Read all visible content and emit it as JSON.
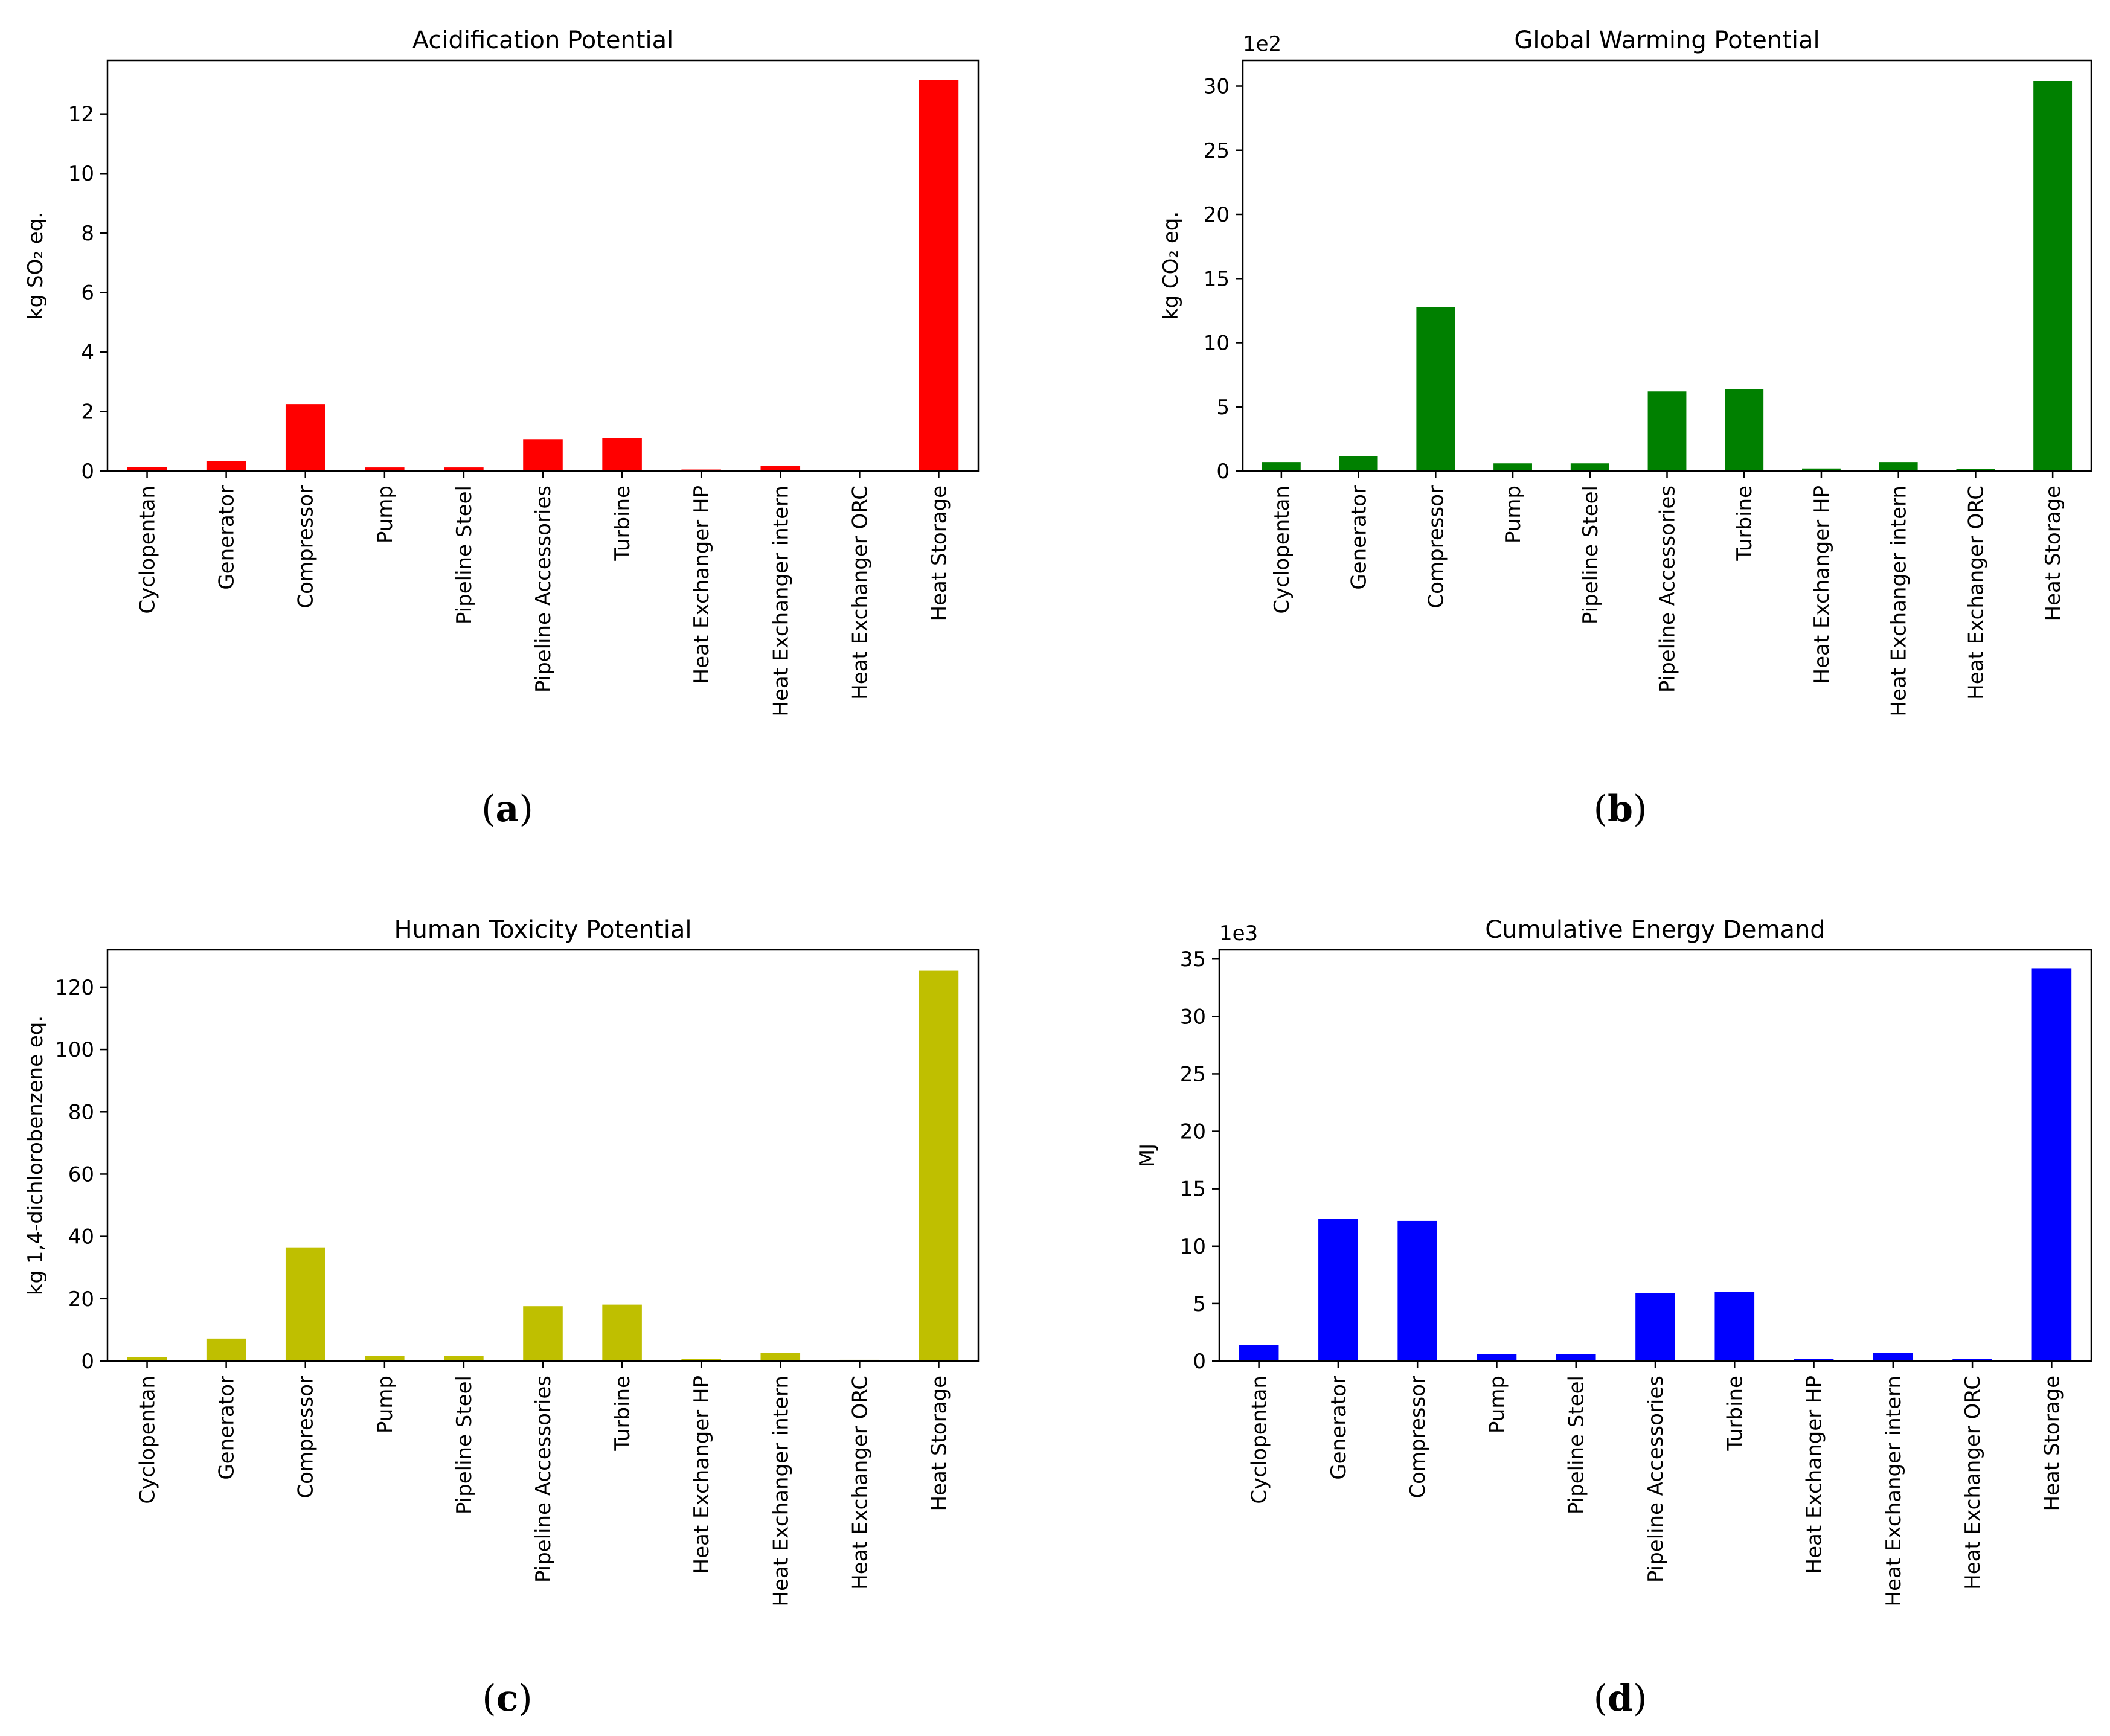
{
  "chart_data": [
    {
      "type": "bar",
      "title": "Acidification Potential",
      "ylabel": "kg SO₂ eq.",
      "xlabel": "",
      "offset_text": "",
      "caption_letter": "a",
      "color": "#ff0000",
      "ylim": [
        0,
        13.8
      ],
      "yticks": [
        0,
        2,
        4,
        6,
        8,
        10,
        12
      ],
      "categories": [
        "Cyclopentan",
        "Generator",
        "Compressor",
        "Pump",
        "Pipeline Steel",
        "Pipeline Accessories",
        "Turbine",
        "Heat Exchanger HP",
        "Heat Exchanger intern",
        "Heat Exchanger ORC",
        "Heat Storage"
      ],
      "values": [
        0.13,
        0.33,
        2.25,
        0.12,
        0.12,
        1.07,
        1.1,
        0.05,
        0.17,
        0.02,
        13.15
      ]
    },
    {
      "type": "bar",
      "title": "Global Warming Potential",
      "ylabel": "kg CO₂ eq.",
      "xlabel": "",
      "offset_text": "1e2",
      "caption_letter": "b",
      "color": "#008000",
      "ylim": [
        0,
        32
      ],
      "yticks": [
        0,
        5,
        10,
        15,
        20,
        25,
        30
      ],
      "categories": [
        "Cyclopentan",
        "Generator",
        "Compressor",
        "Pump",
        "Pipeline Steel",
        "Pipeline Accessories",
        "Turbine",
        "Heat Exchanger HP",
        "Heat Exchanger intern",
        "Heat Exchanger ORC",
        "Heat Storage"
      ],
      "values": [
        0.7,
        1.15,
        12.8,
        0.6,
        0.6,
        6.2,
        6.4,
        0.2,
        0.7,
        0.15,
        30.4
      ]
    },
    {
      "type": "bar",
      "title": "Human Toxicity Potential",
      "ylabel": "kg 1,4-dichlorobenzene eq.",
      "xlabel": "",
      "offset_text": "",
      "caption_letter": "c",
      "color": "#bfbf00",
      "ylim": [
        0,
        132
      ],
      "yticks": [
        0,
        20,
        40,
        60,
        80,
        100,
        120
      ],
      "categories": [
        "Cyclopentan",
        "Generator",
        "Compressor",
        "Pump",
        "Pipeline Steel",
        "Pipeline Accessories",
        "Turbine",
        "Heat Exchanger HP",
        "Heat Exchanger intern",
        "Heat Exchanger ORC",
        "Heat Storage"
      ],
      "values": [
        1.3,
        7.2,
        36.5,
        1.7,
        1.6,
        17.6,
        18.1,
        0.6,
        2.6,
        0.4,
        125.3
      ]
    },
    {
      "type": "bar",
      "title": "Cumulative Energy Demand",
      "ylabel": "MJ",
      "xlabel": "",
      "offset_text": "1e3",
      "caption_letter": "d",
      "color": "#0000ff",
      "ylim": [
        0,
        35.8
      ],
      "yticks": [
        0,
        5,
        10,
        15,
        20,
        25,
        30,
        35
      ],
      "categories": [
        "Cyclopentan",
        "Generator",
        "Compressor",
        "Pump",
        "Pipeline Steel",
        "Pipeline Accessories",
        "Turbine",
        "Heat Exchanger HP",
        "Heat Exchanger intern",
        "Heat Exchanger ORC",
        "Heat Storage"
      ],
      "values": [
        1.4,
        12.4,
        12.2,
        0.6,
        0.6,
        5.9,
        6.0,
        0.2,
        0.7,
        0.2,
        34.2
      ]
    }
  ]
}
